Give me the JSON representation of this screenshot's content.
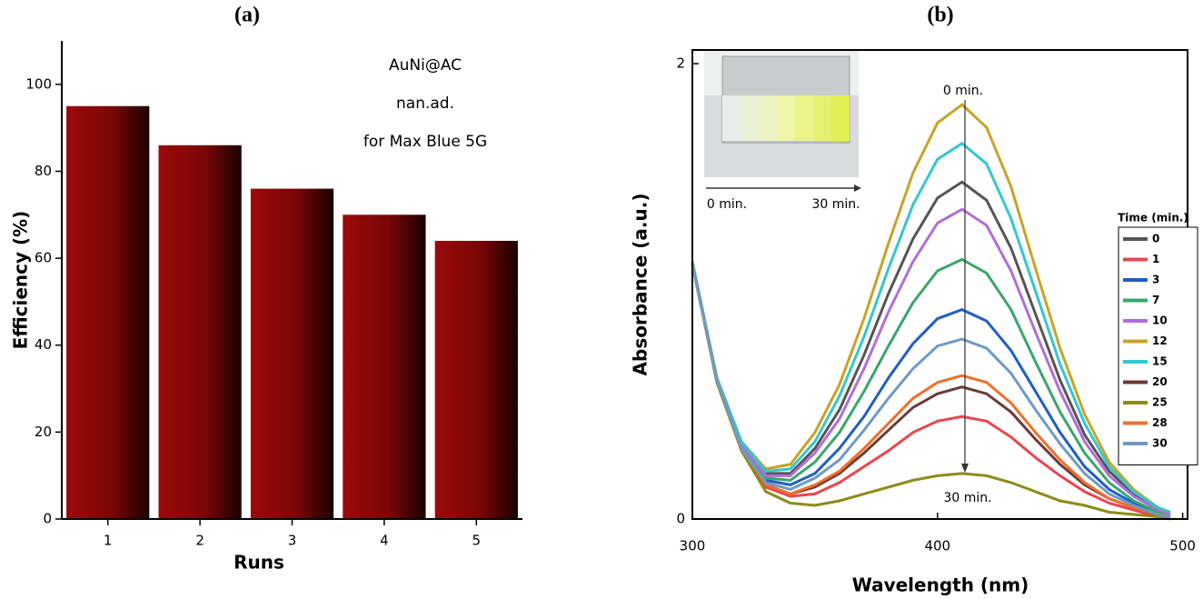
{
  "chart_data": [
    {
      "type": "bar",
      "title": "(a)",
      "x_label": "Runs",
      "y_label": "Efficiency (%)",
      "annotations": [
        "AuNi@AC",
        "nan.ad.",
        "for Max Blue 5G"
      ],
      "categories": [
        "1",
        "2",
        "3",
        "4",
        "5"
      ],
      "values": [
        95,
        86,
        76,
        70,
        64
      ],
      "color": "#9b0a0a",
      "ylim": [
        0,
        110
      ],
      "yticks": [
        0,
        20,
        40,
        60,
        80,
        100
      ]
    },
    {
      "type": "line",
      "title": "(b)",
      "x_label": "Wavelength (nm)",
      "y_label": "Absorbance (a.u.)",
      "legend_title": "Time (min.)",
      "legend": "right",
      "annotations": [
        "0 min.",
        "30 min."
      ],
      "inset_labels": [
        "0 min.",
        "30 min."
      ],
      "x": [
        300,
        310,
        320,
        330,
        340,
        350,
        360,
        370,
        380,
        390,
        400,
        410,
        420,
        430,
        440,
        450,
        460,
        470,
        480,
        490,
        495
      ],
      "xlim": [
        300,
        502
      ],
      "xticks": [
        300,
        400,
        500
      ],
      "ylim": [
        0,
        2.06
      ],
      "yticks": [
        0,
        2
      ],
      "series": [
        {
          "name": "0",
          "color": "#555555",
          "values": [
            1.13,
            0.61,
            0.34,
            0.2,
            0.2,
            0.31,
            0.48,
            0.72,
            0.99,
            1.23,
            1.41,
            1.48,
            1.4,
            1.19,
            0.9,
            0.61,
            0.37,
            0.21,
            0.11,
            0.04,
            0.03
          ]
        },
        {
          "name": "1",
          "color": "#e8474f",
          "values": [
            1.12,
            0.6,
            0.31,
            0.14,
            0.1,
            0.11,
            0.16,
            0.23,
            0.3,
            0.38,
            0.43,
            0.45,
            0.43,
            0.36,
            0.27,
            0.19,
            0.12,
            0.07,
            0.04,
            0.01,
            0.01
          ]
        },
        {
          "name": "3",
          "color": "#1f5fc4",
          "values": [
            1.12,
            0.61,
            0.32,
            0.17,
            0.15,
            0.2,
            0.31,
            0.45,
            0.62,
            0.77,
            0.88,
            0.92,
            0.87,
            0.74,
            0.56,
            0.38,
            0.23,
            0.13,
            0.07,
            0.03,
            0.02
          ]
        },
        {
          "name": "7",
          "color": "#3aa66b",
          "values": [
            1.12,
            0.61,
            0.33,
            0.18,
            0.17,
            0.25,
            0.38,
            0.56,
            0.76,
            0.95,
            1.09,
            1.14,
            1.08,
            0.92,
            0.69,
            0.47,
            0.29,
            0.16,
            0.08,
            0.03,
            0.02
          ]
        },
        {
          "name": "10",
          "color": "#b06fd8",
          "values": [
            1.13,
            0.61,
            0.33,
            0.19,
            0.19,
            0.29,
            0.44,
            0.66,
            0.91,
            1.13,
            1.3,
            1.36,
            1.29,
            1.09,
            0.82,
            0.56,
            0.34,
            0.19,
            0.1,
            0.04,
            0.02
          ]
        },
        {
          "name": "12",
          "color": "#c9a227",
          "values": [
            1.13,
            0.62,
            0.34,
            0.22,
            0.24,
            0.38,
            0.59,
            0.88,
            1.21,
            1.52,
            1.74,
            1.82,
            1.72,
            1.46,
            1.1,
            0.75,
            0.46,
            0.25,
            0.13,
            0.05,
            0.03
          ]
        },
        {
          "name": "15",
          "color": "#33c7cf",
          "values": [
            1.13,
            0.62,
            0.34,
            0.21,
            0.22,
            0.34,
            0.54,
            0.8,
            1.1,
            1.38,
            1.58,
            1.65,
            1.56,
            1.32,
            1.0,
            0.68,
            0.42,
            0.23,
            0.12,
            0.05,
            0.03
          ]
        },
        {
          "name": "20",
          "color": "#6b3b3b",
          "values": [
            1.12,
            0.61,
            0.31,
            0.15,
            0.11,
            0.14,
            0.2,
            0.29,
            0.39,
            0.49,
            0.55,
            0.58,
            0.55,
            0.47,
            0.35,
            0.24,
            0.15,
            0.09,
            0.05,
            0.02,
            0.01
          ]
        },
        {
          "name": "25",
          "color": "#8c8c1a",
          "values": [
            1.12,
            0.6,
            0.3,
            0.12,
            0.07,
            0.06,
            0.08,
            0.11,
            0.14,
            0.17,
            0.19,
            0.2,
            0.19,
            0.16,
            0.12,
            0.08,
            0.06,
            0.03,
            0.02,
            0.01,
            0
          ]
        },
        {
          "name": "28",
          "color": "#f0702a",
          "values": [
            1.12,
            0.61,
            0.31,
            0.15,
            0.11,
            0.15,
            0.21,
            0.31,
            0.42,
            0.53,
            0.6,
            0.63,
            0.6,
            0.51,
            0.38,
            0.26,
            0.16,
            0.09,
            0.05,
            0.02,
            0.01
          ]
        },
        {
          "name": "30",
          "color": "#6f9ac7",
          "values": [
            1.12,
            0.61,
            0.31,
            0.16,
            0.13,
            0.18,
            0.26,
            0.39,
            0.53,
            0.66,
            0.76,
            0.79,
            0.75,
            0.64,
            0.48,
            0.33,
            0.2,
            0.11,
            0.06,
            0.02,
            0.01
          ]
        }
      ]
    }
  ]
}
